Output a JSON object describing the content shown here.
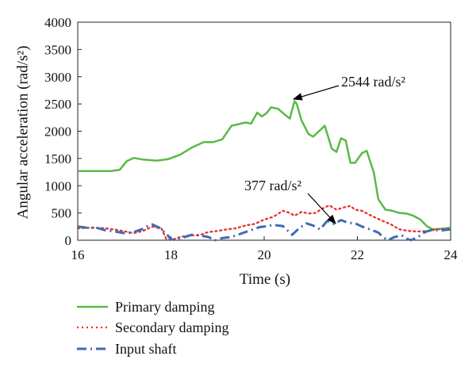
{
  "chart_data": {
    "type": "line",
    "title": "",
    "xlabel": "Time (s)",
    "ylabel": "Angular acceleration (rad/s²)",
    "xlim": [
      16,
      24
    ],
    "ylim": [
      0,
      4000
    ],
    "xticks": [
      16,
      18,
      20,
      22,
      24
    ],
    "yticks": [
      0,
      500,
      1000,
      1500,
      2000,
      2500,
      3000,
      3500,
      4000
    ],
    "grid": false,
    "legend_position": "bottom",
    "series": [
      {
        "name": "Primary damping",
        "color": "#5ab947",
        "style": "solid",
        "points": [
          [
            16.0,
            1270
          ],
          [
            16.4,
            1270
          ],
          [
            16.7,
            1270
          ],
          [
            16.9,
            1290
          ],
          [
            17.05,
            1450
          ],
          [
            17.2,
            1510
          ],
          [
            17.4,
            1480
          ],
          [
            17.7,
            1460
          ],
          [
            17.95,
            1490
          ],
          [
            18.2,
            1570
          ],
          [
            18.45,
            1700
          ],
          [
            18.7,
            1800
          ],
          [
            18.9,
            1800
          ],
          [
            19.1,
            1850
          ],
          [
            19.3,
            2100
          ],
          [
            19.45,
            2130
          ],
          [
            19.6,
            2160
          ],
          [
            19.72,
            2140
          ],
          [
            19.85,
            2340
          ],
          [
            19.95,
            2270
          ],
          [
            20.05,
            2330
          ],
          [
            20.15,
            2440
          ],
          [
            20.3,
            2410
          ],
          [
            20.45,
            2300
          ],
          [
            20.55,
            2230
          ],
          [
            20.65,
            2550
          ],
          [
            20.7,
            2500
          ],
          [
            20.8,
            2200
          ],
          [
            20.95,
            1950
          ],
          [
            21.05,
            1900
          ],
          [
            21.2,
            2020
          ],
          [
            21.3,
            2100
          ],
          [
            21.45,
            1680
          ],
          [
            21.55,
            1620
          ],
          [
            21.65,
            1870
          ],
          [
            21.75,
            1830
          ],
          [
            21.85,
            1420
          ],
          [
            21.95,
            1420
          ],
          [
            22.1,
            1600
          ],
          [
            22.2,
            1640
          ],
          [
            22.35,
            1250
          ],
          [
            22.45,
            750
          ],
          [
            22.6,
            560
          ],
          [
            22.75,
            540
          ],
          [
            22.9,
            500
          ],
          [
            23.05,
            490
          ],
          [
            23.2,
            450
          ],
          [
            23.35,
            380
          ],
          [
            23.5,
            250
          ],
          [
            23.62,
            200
          ],
          [
            23.8,
            210
          ],
          [
            24.0,
            230
          ]
        ]
      },
      {
        "name": "Secondary damping",
        "color": "#e8312b",
        "style": "dotted",
        "points": [
          [
            16.0,
            220
          ],
          [
            16.3,
            230
          ],
          [
            16.6,
            220
          ],
          [
            16.9,
            180
          ],
          [
            17.2,
            130
          ],
          [
            17.4,
            170
          ],
          [
            17.6,
            250
          ],
          [
            17.8,
            210
          ],
          [
            17.9,
            20
          ],
          [
            18.0,
            0
          ],
          [
            18.2,
            60
          ],
          [
            18.4,
            90
          ],
          [
            18.6,
            90
          ],
          [
            18.8,
            150
          ],
          [
            19.0,
            170
          ],
          [
            19.2,
            200
          ],
          [
            19.4,
            220
          ],
          [
            19.6,
            270
          ],
          [
            19.8,
            300
          ],
          [
            20.0,
            380
          ],
          [
            20.2,
            430
          ],
          [
            20.4,
            540
          ],
          [
            20.55,
            500
          ],
          [
            20.65,
            450
          ],
          [
            20.8,
            520
          ],
          [
            20.95,
            490
          ],
          [
            21.1,
            500
          ],
          [
            21.25,
            580
          ],
          [
            21.4,
            640
          ],
          [
            21.55,
            560
          ],
          [
            21.7,
            600
          ],
          [
            21.85,
            630
          ],
          [
            21.95,
            560
          ],
          [
            22.1,
            540
          ],
          [
            22.3,
            450
          ],
          [
            22.5,
            370
          ],
          [
            22.7,
            300
          ],
          [
            22.9,
            200
          ],
          [
            23.1,
            170
          ],
          [
            23.3,
            160
          ],
          [
            23.5,
            170
          ],
          [
            23.7,
            200
          ],
          [
            24.0,
            210
          ]
        ]
      },
      {
        "name": "Input shaft",
        "color": "#3f6bb5",
        "style": "dashdot",
        "points": [
          [
            16.0,
            250
          ],
          [
            16.2,
            230
          ],
          [
            16.4,
            230
          ],
          [
            16.6,
            180
          ],
          [
            16.8,
            160
          ],
          [
            17.0,
            130
          ],
          [
            17.2,
            150
          ],
          [
            17.4,
            210
          ],
          [
            17.5,
            260
          ],
          [
            17.6,
            290
          ],
          [
            17.75,
            230
          ],
          [
            17.9,
            120
          ],
          [
            18.0,
            20
          ],
          [
            18.1,
            0
          ],
          [
            18.3,
            60
          ],
          [
            18.45,
            100
          ],
          [
            18.6,
            90
          ],
          [
            18.8,
            60
          ],
          [
            18.95,
            0
          ],
          [
            19.1,
            40
          ],
          [
            19.3,
            60
          ],
          [
            19.5,
            120
          ],
          [
            19.7,
            180
          ],
          [
            19.9,
            240
          ],
          [
            20.0,
            250
          ],
          [
            20.2,
            280
          ],
          [
            20.4,
            260
          ],
          [
            20.6,
            100
          ],
          [
            20.75,
            220
          ],
          [
            20.9,
            310
          ],
          [
            21.05,
            270
          ],
          [
            21.2,
            200
          ],
          [
            21.35,
            350
          ],
          [
            21.5,
            300
          ],
          [
            21.65,
            370
          ],
          [
            21.8,
            320
          ],
          [
            21.95,
            310
          ],
          [
            22.1,
            250
          ],
          [
            22.3,
            190
          ],
          [
            22.45,
            140
          ],
          [
            22.55,
            60
          ],
          [
            22.65,
            0
          ],
          [
            22.8,
            60
          ],
          [
            22.95,
            90
          ],
          [
            23.05,
            30
          ],
          [
            23.15,
            0
          ],
          [
            23.3,
            60
          ],
          [
            23.45,
            150
          ],
          [
            23.6,
            190
          ],
          [
            23.8,
            180
          ],
          [
            24.0,
            200
          ]
        ]
      }
    ],
    "annotations": [
      {
        "label": "2544 rad/s²",
        "x": 20.65,
        "y": 2544
      },
      {
        "label": "377 rad/s²",
        "x": 21.7,
        "y": 377
      }
    ]
  }
}
